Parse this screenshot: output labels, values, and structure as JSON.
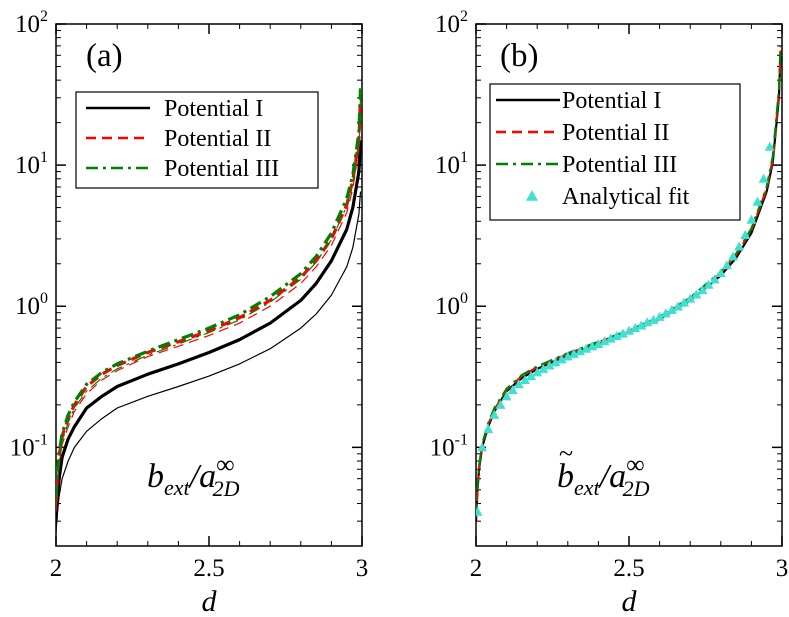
{
  "chart_data": [
    {
      "type": "line",
      "panel_label": "(a)",
      "xlabel": "d",
      "ylabel": "",
      "yscale": "log",
      "xlim": [
        2,
        3
      ],
      "ylim": [
        0.02,
        100
      ],
      "xticks": [
        "2",
        "2.5",
        "3"
      ],
      "yticks": [
        {
          "base": "10",
          "exp": "2"
        },
        {
          "base": "10",
          "exp": "1"
        },
        {
          "base": "10",
          "exp": "0"
        },
        {
          "base": "10",
          "exp": "-1"
        }
      ],
      "annotation": {
        "main": "b",
        "sub1": "ext",
        "slash": "/a",
        "sup": "∞",
        "sub2": "2D"
      },
      "legend": {
        "placement": "top-right",
        "entries": [
          {
            "label": "Potential I",
            "color": "#000000",
            "dash": "solid"
          },
          {
            "label": "Potential II",
            "color": "#ff0000",
            "dash": "dashed"
          },
          {
            "label": "Potential III",
            "color": "#008000",
            "dash": "dashdot"
          }
        ]
      },
      "series": [
        {
          "name": "Potential I",
          "color": "#000000",
          "dash": "solid",
          "width": 3.2,
          "x": [
            2.0,
            2.005,
            2.01,
            2.02,
            2.04,
            2.06,
            2.1,
            2.15,
            2.2,
            2.3,
            2.4,
            2.5,
            2.6,
            2.7,
            2.8,
            2.85,
            2.9,
            2.95,
            2.97,
            2.99,
            2.995
          ],
          "y": [
            0.03,
            0.045,
            0.06,
            0.085,
            0.115,
            0.14,
            0.19,
            0.23,
            0.27,
            0.33,
            0.39,
            0.47,
            0.58,
            0.76,
            1.1,
            1.45,
            2.1,
            3.5,
            5.0,
            9.0,
            15.0
          ]
        },
        {
          "name": "Potential I",
          "color": "#000000",
          "dash": "solid",
          "width": 1.2,
          "x": [
            2.0,
            2.005,
            2.01,
            2.02,
            2.04,
            2.06,
            2.1,
            2.15,
            2.2,
            2.3,
            2.4,
            2.5,
            2.6,
            2.7,
            2.8,
            2.85,
            2.9,
            2.95,
            2.97,
            2.99,
            2.995
          ],
          "y": [
            0.025,
            0.035,
            0.045,
            0.06,
            0.08,
            0.1,
            0.13,
            0.16,
            0.19,
            0.23,
            0.27,
            0.32,
            0.39,
            0.5,
            0.7,
            0.88,
            1.2,
            1.9,
            2.6,
            4.5,
            6.5
          ]
        },
        {
          "name": "Potential II",
          "color": "#ff0000",
          "dash": "dashed",
          "width": 3.2,
          "x": [
            2.0,
            2.005,
            2.01,
            2.02,
            2.04,
            2.06,
            2.1,
            2.15,
            2.2,
            2.3,
            2.4,
            2.5,
            2.6,
            2.7,
            2.8,
            2.85,
            2.9,
            2.95,
            2.97,
            2.99,
            2.995
          ],
          "y": [
            0.04,
            0.065,
            0.085,
            0.12,
            0.16,
            0.2,
            0.27,
            0.33,
            0.38,
            0.47,
            0.56,
            0.67,
            0.83,
            1.1,
            1.6,
            2.1,
            3.0,
            5.2,
            7.8,
            15.0,
            30.0
          ]
        },
        {
          "name": "Potential II",
          "color": "#ff0000",
          "dash": "dashed",
          "width": 1.2,
          "x": [
            2.0,
            2.005,
            2.01,
            2.02,
            2.04,
            2.06,
            2.1,
            2.15,
            2.2,
            2.3,
            2.4,
            2.5,
            2.6,
            2.7,
            2.8,
            2.85,
            2.9,
            2.95,
            2.97,
            2.99,
            2.995
          ],
          "y": [
            0.035,
            0.055,
            0.075,
            0.105,
            0.14,
            0.18,
            0.24,
            0.3,
            0.35,
            0.44,
            0.52,
            0.62,
            0.76,
            1.0,
            1.45,
            1.9,
            2.7,
            4.6,
            6.8,
            13.0,
            25.0
          ]
        },
        {
          "name": "Potential III",
          "color": "#008000",
          "dash": "dashdot",
          "width": 3.2,
          "x": [
            2.0,
            2.005,
            2.01,
            2.02,
            2.04,
            2.06,
            2.1,
            2.15,
            2.2,
            2.3,
            2.4,
            2.5,
            2.6,
            2.7,
            2.8,
            2.85,
            2.9,
            2.95,
            2.97,
            2.99,
            2.995
          ],
          "y": [
            0.045,
            0.07,
            0.09,
            0.125,
            0.17,
            0.21,
            0.28,
            0.34,
            0.39,
            0.48,
            0.58,
            0.7,
            0.87,
            1.17,
            1.7,
            2.25,
            3.3,
            5.8,
            8.5,
            17.0,
            35.0
          ]
        },
        {
          "name": "Potential III",
          "color": "#008000",
          "dash": "dashdot",
          "width": 1.2,
          "x": [
            2.0,
            2.005,
            2.01,
            2.02,
            2.04,
            2.06,
            2.1,
            2.15,
            2.2,
            2.3,
            2.4,
            2.5,
            2.6,
            2.7,
            2.8,
            2.85,
            2.9,
            2.95,
            2.97,
            2.99,
            2.995
          ],
          "y": [
            0.04,
            0.06,
            0.08,
            0.11,
            0.15,
            0.19,
            0.25,
            0.31,
            0.36,
            0.45,
            0.54,
            0.65,
            0.8,
            1.07,
            1.55,
            2.05,
            2.95,
            5.1,
            7.5,
            15.0,
            30.0
          ]
        }
      ]
    },
    {
      "type": "line",
      "panel_label": "(b)",
      "xlabel": "d",
      "ylabel": "",
      "yscale": "log",
      "xlim": [
        2,
        3
      ],
      "ylim": [
        0.02,
        100
      ],
      "xticks": [
        "2",
        "2.5",
        "3"
      ],
      "yticks": [
        {
          "base": "10",
          "exp": "2"
        },
        {
          "base": "10",
          "exp": "1"
        },
        {
          "base": "10",
          "exp": "0"
        },
        {
          "base": "10",
          "exp": "-1"
        }
      ],
      "annotation": {
        "main": "b",
        "tilde": "~",
        "sub1": "ext",
        "slash": "/a",
        "sup": "∞",
        "sub2": "2D"
      },
      "legend": {
        "placement": "top-right",
        "entries": [
          {
            "label": "Potential I",
            "color": "#000000",
            "dash": "solid"
          },
          {
            "label": "Potential II",
            "color": "#ff0000",
            "dash": "dashed"
          },
          {
            "label": "Potential III",
            "color": "#008000",
            "dash": "dashdot"
          },
          {
            "label": "Analytical fit",
            "color": "#40e0d0",
            "marker": "triangle"
          }
        ]
      },
      "series": [
        {
          "name": "Potential I",
          "color": "#000000",
          "dash": "solid",
          "width": 2.2,
          "x": [
            2.0,
            2.005,
            2.01,
            2.02,
            2.04,
            2.06,
            2.1,
            2.15,
            2.2,
            2.3,
            2.4,
            2.5,
            2.6,
            2.7,
            2.8,
            2.85,
            2.9,
            2.95,
            2.97,
            2.99,
            2.995
          ],
          "y": [
            0.03,
            0.05,
            0.07,
            0.1,
            0.14,
            0.18,
            0.25,
            0.31,
            0.36,
            0.45,
            0.54,
            0.65,
            0.81,
            1.1,
            1.65,
            2.2,
            3.3,
            6.5,
            10.5,
            30.0,
            60.0
          ]
        },
        {
          "name": "Potential II",
          "color": "#ff0000",
          "dash": "dashed",
          "width": 2.2,
          "x": [
            2.0,
            2.005,
            2.01,
            2.02,
            2.04,
            2.06,
            2.1,
            2.15,
            2.2,
            2.3,
            2.4,
            2.5,
            2.6,
            2.7,
            2.8,
            2.85,
            2.9,
            2.95,
            2.97,
            2.99,
            2.995
          ],
          "y": [
            0.032,
            0.052,
            0.072,
            0.103,
            0.145,
            0.185,
            0.255,
            0.32,
            0.37,
            0.46,
            0.555,
            0.67,
            0.835,
            1.14,
            1.72,
            2.3,
            3.45,
            6.8,
            11.0,
            32.0,
            65.0
          ]
        },
        {
          "name": "Potential III",
          "color": "#008000",
          "dash": "dashdot",
          "width": 2.2,
          "x": [
            2.0,
            2.005,
            2.01,
            2.02,
            2.04,
            2.06,
            2.1,
            2.15,
            2.2,
            2.3,
            2.4,
            2.5,
            2.6,
            2.7,
            2.8,
            2.85,
            2.9,
            2.95,
            2.97,
            2.99,
            2.995
          ],
          "y": [
            0.033,
            0.054,
            0.074,
            0.105,
            0.148,
            0.19,
            0.26,
            0.325,
            0.375,
            0.465,
            0.56,
            0.675,
            0.84,
            1.15,
            1.75,
            2.35,
            3.55,
            7.0,
            11.5,
            34.0,
            70.0
          ]
        },
        {
          "name": "Analytical fit",
          "color": "#40e0d0",
          "marker": "triangle",
          "x": [
            2.005,
            2.02,
            2.04,
            2.06,
            2.08,
            2.1,
            2.12,
            2.14,
            2.16,
            2.18,
            2.2,
            2.22,
            2.24,
            2.26,
            2.28,
            2.3,
            2.32,
            2.34,
            2.36,
            2.38,
            2.4,
            2.42,
            2.44,
            2.46,
            2.48,
            2.5,
            2.52,
            2.54,
            2.56,
            2.58,
            2.6,
            2.62,
            2.64,
            2.66,
            2.68,
            2.7,
            2.72,
            2.74,
            2.76,
            2.78,
            2.8,
            2.82,
            2.84,
            2.86,
            2.88,
            2.9,
            2.92,
            2.94,
            2.96
          ],
          "y": [
            0.035,
            0.1,
            0.135,
            0.17,
            0.2,
            0.23,
            0.255,
            0.28,
            0.3,
            0.32,
            0.34,
            0.36,
            0.38,
            0.4,
            0.42,
            0.44,
            0.46,
            0.48,
            0.5,
            0.52,
            0.54,
            0.565,
            0.59,
            0.615,
            0.64,
            0.67,
            0.7,
            0.73,
            0.77,
            0.8,
            0.84,
            0.89,
            0.94,
            0.995,
            1.06,
            1.13,
            1.21,
            1.3,
            1.42,
            1.55,
            1.72,
            1.95,
            2.25,
            2.65,
            3.2,
            4.1,
            5.5,
            8.0,
            13.5
          ]
        }
      ]
    }
  ]
}
